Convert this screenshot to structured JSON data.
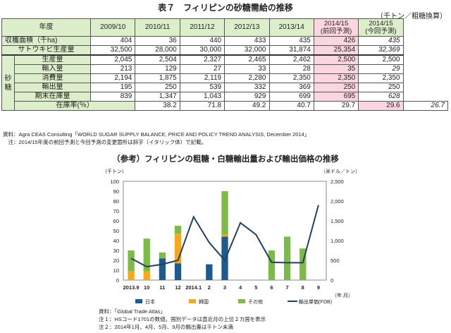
{
  "table_title": "表７　フィリピンの砂糖需給の推移",
  "table_unit": "（千トン／粗糖換算）",
  "table": {
    "header_label": "年度",
    "years": [
      "2009/10",
      "2010/11",
      "2011/12",
      "2012/13",
      "2013/14"
    ],
    "prev_forecast_year": "2014/15",
    "prev_forecast_note": "(前回予測)",
    "curr_forecast_year": "2014/15",
    "curr_forecast_note": "(今回予測)",
    "group_label": "砂糖",
    "rows": [
      {
        "label": "収穫面積（千ha)",
        "values": [
          "404",
          "36",
          "440",
          "433",
          "435"
        ],
        "prev": "426",
        "curr": "435",
        "grouped": false
      },
      {
        "label": "サトウキビ生産量",
        "values": [
          "32,500",
          "28,000",
          "30,000",
          "32,000",
          "31,874"
        ],
        "prev": "25,354",
        "curr": "32,369",
        "grouped": false
      },
      {
        "label": "生産量",
        "values": [
          "2,045",
          "2,504",
          "2,327",
          "2,465",
          "2,462"
        ],
        "prev": "2,500",
        "curr": "2,500",
        "grouped": true
      },
      {
        "label": "輸入量",
        "values": [
          "213",
          "129",
          "27",
          "33",
          "28"
        ],
        "prev": "35",
        "curr": "29",
        "grouped": true
      },
      {
        "label": "消費量",
        "values": [
          "2,194",
          "1,875",
          "2,119",
          "2,280",
          "2,350"
        ],
        "prev": "2,350",
        "curr": "2,350",
        "grouped": true
      },
      {
        "label": "輸出量",
        "values": [
          "195",
          "250",
          "539",
          "332",
          "369"
        ],
        "prev": "250",
        "curr": "250",
        "grouped": true
      },
      {
        "label": "期末在庫量",
        "values": [
          "839",
          "1,347",
          "1,043",
          "929",
          "699"
        ],
        "prev": "695",
        "curr": "628",
        "grouped": true
      },
      {
        "label": "在庫率(％）",
        "values": [
          "38.2",
          "71.8",
          "49.2",
          "40.7",
          "29.7"
        ],
        "prev": "29.6",
        "curr": "26.7",
        "grouped": false
      }
    ]
  },
  "table_source": "資料：Agra CEAS Consulting「WORLD SUGAR SUPPLY BALANCE, PRICE AND POLICY TREND ANALYSIS, December 2014」",
  "table_note": "　注：2014/15年度の前回予測と今回予測の変更箇所は斜字（イタリック体）で記載。",
  "chart_title": "（参考）フィリピンの粗糖・白糖輸出量および輸出価格の推移",
  "chart_data": {
    "type": "bar",
    "categories": [
      "2013.9",
      "10",
      "11",
      "12",
      "2014.1",
      "2",
      "3",
      "4",
      "5",
      "6",
      "7",
      "8",
      "9"
    ],
    "series": [
      {
        "name": "日本",
        "values": [
          0,
          0,
          22,
          17,
          0,
          16,
          44,
          0,
          0,
          0,
          0,
          0,
          0
        ]
      },
      {
        "name": "韓国",
        "values": [
          9,
          9,
          0,
          30,
          0,
          0,
          2,
          0,
          0,
          0,
          0,
          0,
          0
        ]
      },
      {
        "name": "その他",
        "values": [
          21,
          33,
          6,
          8,
          0,
          0,
          44,
          0,
          0,
          30,
          44,
          32,
          0
        ]
      },
      {
        "name": "輸出単価(FOB)",
        "values": [
          550,
          340,
          400,
          500,
          1600,
          950,
          500,
          1450,
          1150,
          450,
          440,
          440,
          1900
        ]
      }
    ],
    "ylabel_left": "（千トン）",
    "ylabel_right": "（米ドル／トン）",
    "xlabel": "（年.月）",
    "ylim_left": [
      0,
      100
    ],
    "ylim_right": [
      0,
      2500
    ],
    "yticks_left": [
      "0",
      "10",
      "20",
      "30",
      "40",
      "50",
      "60",
      "70",
      "80",
      "90",
      "100"
    ],
    "yticks_right": [
      "0",
      "500",
      "1,000",
      "1,500",
      "2,000",
      "2,500"
    ],
    "colors": {
      "日本": "#1f5a8c",
      "韓国": "#f5a81c",
      "その他": "#7dbb47",
      "輸出単価(FOB)": "#24405e"
    },
    "grid": false,
    "legend": "bottom"
  },
  "chart_source": "資料：「Global Trade Atlas」",
  "chart_note1": "注１：HSコード1701の数値。国別データは直近月の上位２カ国を表示",
  "chart_note2": "注２：2014年1月、4月、5月、9月の輸出量は千トン未満"
}
